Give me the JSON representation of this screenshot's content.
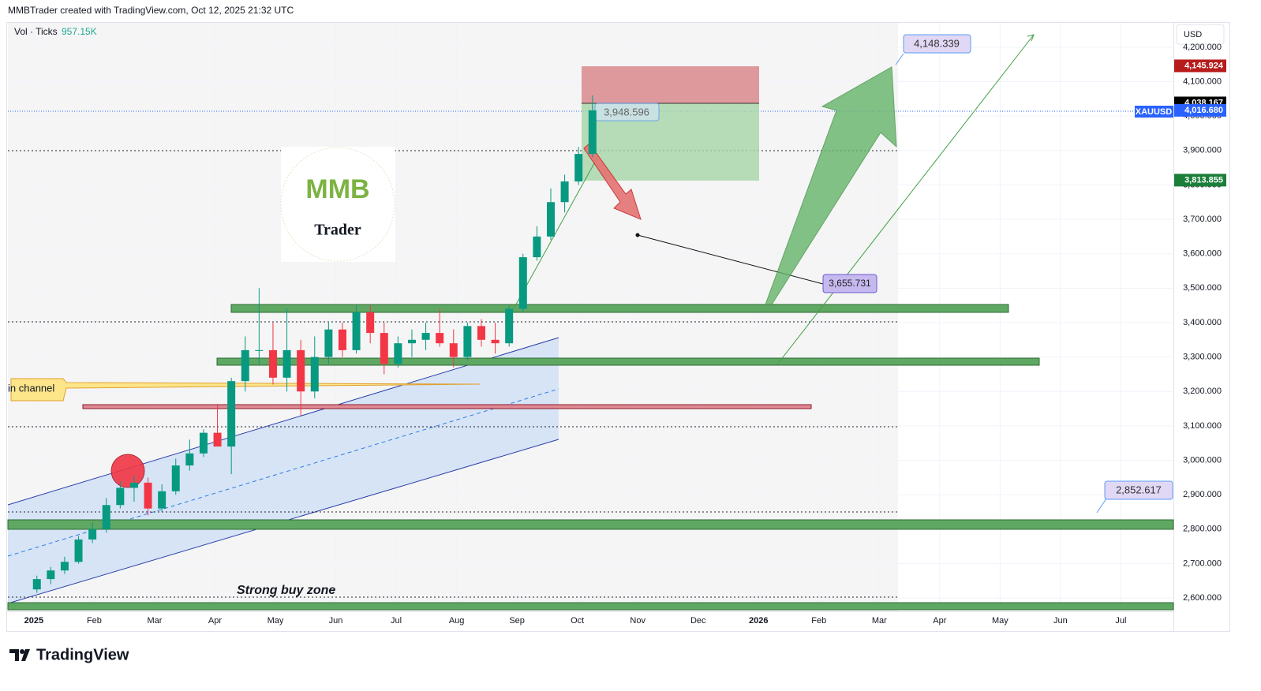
{
  "chart_data": {
    "type": "candlestick",
    "header": "MMBTrader created with TradingView.com, Oct 12, 2025 21:32 UTC",
    "indicator_label": "Vol · Ticks",
    "indicator_value": "957.15K",
    "currency": "USD",
    "symbol": "XAUUSD",
    "up_color": "#089981",
    "down_color": "#f23645",
    "x": [
      0.05,
      0.28,
      0.51,
      0.74,
      0.97,
      1.2,
      1.43,
      1.66,
      1.89,
      2.12,
      2.35,
      2.58,
      2.81,
      3.04,
      3.27,
      3.5,
      3.73,
      3.96,
      4.19,
      4.42,
      4.65,
      4.88,
      5.11,
      5.34,
      5.57,
      5.8,
      6.03,
      6.26,
      6.49,
      6.72,
      6.95,
      7.18,
      7.41,
      7.64,
      7.87,
      8.1,
      8.33,
      8.56,
      8.79,
      9.02,
      9.25
    ],
    "open": [
      2625,
      2655,
      2680,
      2705,
      2770,
      2800,
      2870,
      2920,
      2935,
      2860,
      2910,
      2985,
      3020,
      3080,
      3040,
      3230,
      3320,
      3320,
      3240,
      3320,
      3200,
      3300,
      3380,
      3320,
      3430,
      3370,
      3280,
      3340,
      3350,
      3370,
      3340,
      3300,
      3390,
      3350,
      3340,
      3440,
      3590,
      3650,
      3750,
      3810,
      3890
    ],
    "high": [
      2665,
      2690,
      2720,
      2780,
      2820,
      2890,
      2940,
      2955,
      2950,
      2930,
      3005,
      3060,
      3090,
      3160,
      3240,
      3360,
      3500,
      3400,
      3440,
      3350,
      3360,
      3400,
      3400,
      3450,
      3450,
      3400,
      3360,
      3380,
      3400,
      3440,
      3380,
      3400,
      3410,
      3400,
      3450,
      3600,
      3680,
      3790,
      3830,
      3910,
      4060
    ],
    "low": [
      2615,
      2640,
      2670,
      2700,
      2760,
      2790,
      2860,
      2880,
      2840,
      2850,
      2900,
      2970,
      3010,
      3050,
      2960,
      3200,
      3280,
      3220,
      3200,
      3130,
      3180,
      3280,
      3300,
      3310,
      3340,
      3250,
      3270,
      3300,
      3320,
      3330,
      3270,
      3290,
      3330,
      3310,
      3330,
      3430,
      3580,
      3640,
      3720,
      3800,
      3880
    ],
    "close": [
      2655,
      2680,
      2705,
      2770,
      2800,
      2870,
      2920,
      2935,
      2860,
      2910,
      2985,
      3020,
      3080,
      3040,
      3230,
      3320,
      3320,
      3240,
      3320,
      3200,
      3300,
      3380,
      3320,
      3430,
      3370,
      3280,
      3340,
      3350,
      3370,
      3340,
      3300,
      3390,
      3350,
      3340,
      3440,
      3590,
      3650,
      3750,
      3810,
      3890,
      4016.68
    ],
    "xlim": [
      -0.43,
      18.87
    ],
    "xticks": [
      {
        "value": 0,
        "label": "2025"
      },
      {
        "value": 1,
        "label": "Feb"
      },
      {
        "value": 2,
        "label": "Mar"
      },
      {
        "value": 3,
        "label": "Apr"
      },
      {
        "value": 4,
        "label": "May"
      },
      {
        "value": 5,
        "label": "Jun"
      },
      {
        "value": 6,
        "label": "Jul"
      },
      {
        "value": 7,
        "label": "Aug"
      },
      {
        "value": 8,
        "label": "Sep"
      },
      {
        "value": 9,
        "label": "Oct"
      },
      {
        "value": 10,
        "label": "Nov"
      },
      {
        "value": 11,
        "label": "Dec"
      },
      {
        "value": 12,
        "label": "2026"
      },
      {
        "value": 13,
        "label": "Feb"
      },
      {
        "value": 14,
        "label": "Mar"
      },
      {
        "value": 15,
        "label": "Apr"
      },
      {
        "value": 16,
        "label": "May"
      },
      {
        "value": 17,
        "label": "Jun"
      },
      {
        "value": 18,
        "label": "Jul"
      }
    ],
    "ylim": [
      2504,
      4273
    ],
    "yticks": [
      {
        "value": 2600,
        "label": "2,600.000"
      },
      {
        "value": 2700,
        "label": "2,700.000"
      },
      {
        "value": 2800,
        "label": "2,800.000"
      },
      {
        "value": 2900,
        "label": "2,900.000"
      },
      {
        "value": 3000,
        "label": "3,000.000"
      },
      {
        "value": 3100,
        "label": "3,100.000"
      },
      {
        "value": 3200,
        "label": "3,200.000"
      },
      {
        "value": 3300,
        "label": "3,300.000"
      },
      {
        "value": 3400,
        "label": "3,400.000"
      },
      {
        "value": 3500,
        "label": "3,500.000"
      },
      {
        "value": 3600,
        "label": "3,600.000"
      },
      {
        "value": 3700,
        "label": "3,700.000"
      },
      {
        "value": 3800,
        "label": "3,800.000"
      },
      {
        "value": 3900,
        "label": "3,900.000"
      },
      {
        "value": 4000,
        "label": "4,000.000"
      },
      {
        "value": 4100,
        "label": "4,100.000"
      },
      {
        "value": 4200,
        "label": "4,200.000"
      }
    ],
    "price_labels": [
      {
        "value": 4145.924,
        "label": "4,145.924",
        "color": "#b71c1c"
      },
      {
        "value": 4038.167,
        "label": "4,038.167",
        "color": "#000000"
      },
      {
        "value": 4016.68,
        "label": "4,016.680",
        "color": "#2962ff"
      },
      {
        "value": 3813.855,
        "label": "3,813.855",
        "color": "#1b7f3a"
      }
    ],
    "annotations": [
      "4,148.339",
      "3,948.596",
      "3,655.731",
      "2,852.617",
      "in channel",
      "Strong buy zone"
    ],
    "logo": {
      "top": "MMB",
      "bottom": "Trader"
    },
    "footer": "TradingView"
  }
}
